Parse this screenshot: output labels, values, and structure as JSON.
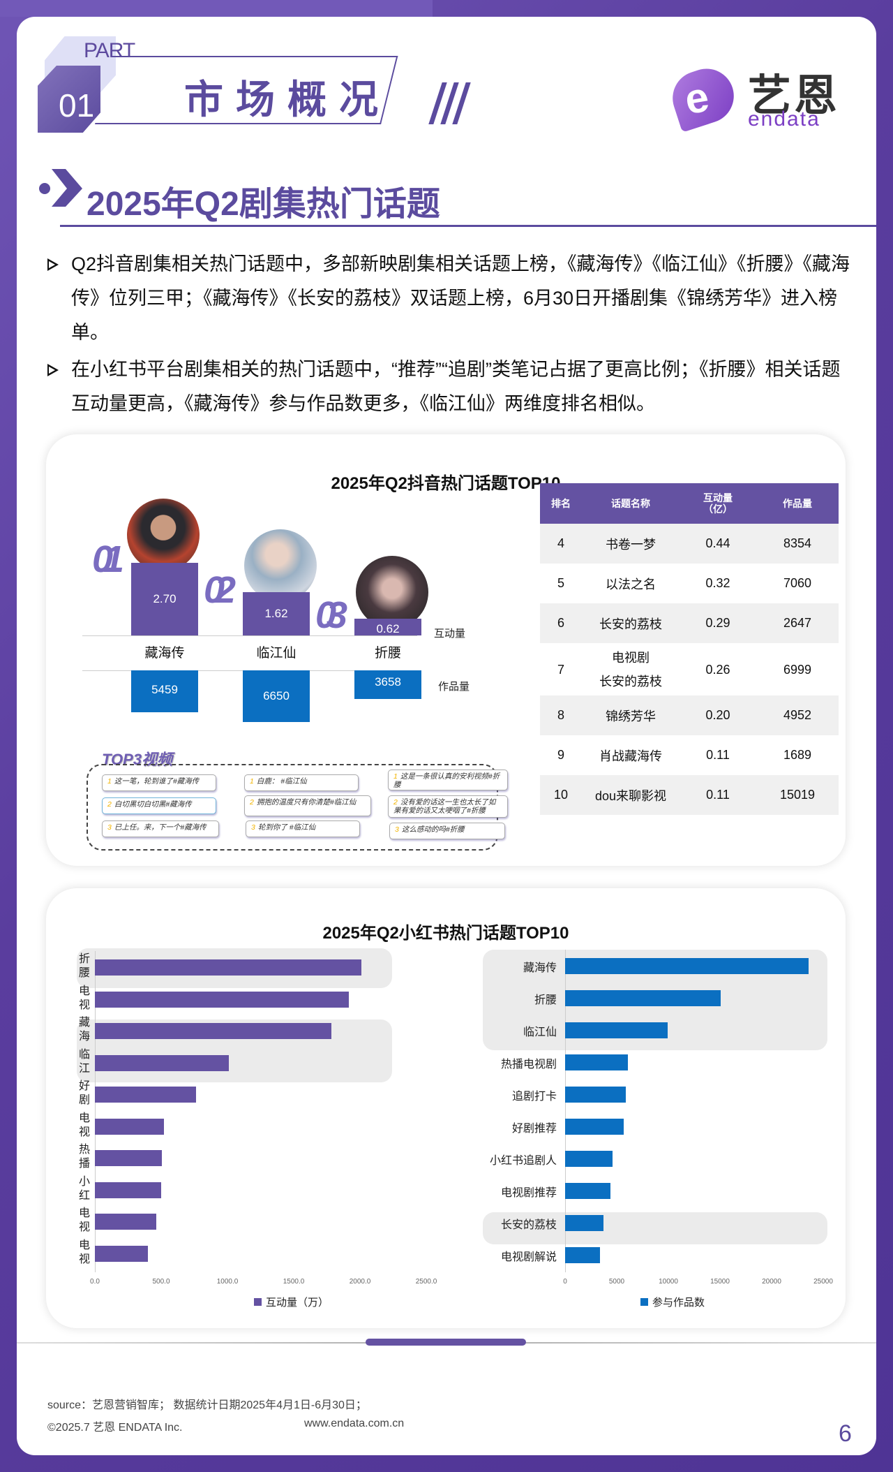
{
  "header": {
    "part_label": "PART",
    "part_number": "01",
    "section_title": "市场概况",
    "logo_cn": "艺恩",
    "logo_en": "endata",
    "logo_letter": "e"
  },
  "heading": {
    "title": "2025年Q2剧集热门话题"
  },
  "bullets": [
    "Q2抖音剧集相关热门话题中，多部新映剧集相关话题上榜，《藏海传》《临江仙》《折腰》《藏海传》位列三甲；《藏海传》《长安的荔枝》双话题上榜，6月30日开播剧集《锦绣芳华》进入榜单。",
    "在小红书平台剧集相关的热门话题中，“推荐”“追剧”类笔记占据了更高比例；《折腰》相关话题互动量更高，《藏海传》参与作品数更多，《临江仙》两维度排名相似。"
  ],
  "douyin": {
    "title": "2025年Q2抖音热门话题TOP10",
    "podium": [
      {
        "rank": "01",
        "name": "藏海传",
        "interaction": "2.70",
        "works": "5459"
      },
      {
        "rank": "02",
        "name": "临江仙",
        "interaction": "1.62",
        "works": "6650"
      },
      {
        "rank": "03",
        "name": "折腰",
        "interaction": "0.62",
        "works": "3658"
      }
    ],
    "label_interaction": "互动量",
    "label_works": "作品量",
    "top3_title": "TOP3视频",
    "top3_videos": [
      [
        {
          "n": "1",
          "text": "这一笔，轮到谁了#藏海传"
        },
        {
          "n": "2",
          "text": "白切黑切白切黑#藏海传"
        },
        {
          "n": "3",
          "text": "已上任。来，下一个#藏海传"
        }
      ],
      [
        {
          "n": "1",
          "text": "白鹿：      #临江仙"
        },
        {
          "n": "2",
          "text": "拥抱的温度只有你清楚#临江仙"
        },
        {
          "n": "3",
          "text": "轮到你了   #临江仙"
        }
      ],
      [
        {
          "n": "1",
          "text": "这是一条很认真的安利视频#折腰"
        },
        {
          "n": "2",
          "text": "没有爱的话这一生也太长了如果有爱的话又太哽咽了#折腰"
        },
        {
          "n": "3",
          "text": "这么感动的吗#折腰"
        }
      ]
    ],
    "table": {
      "headers": [
        "排名",
        "话题名称",
        "互动量\n（亿）",
        "作品量"
      ],
      "rows": [
        {
          "rank": "4",
          "name": "书卷一梦",
          "interaction": "0.44",
          "works": "8354"
        },
        {
          "rank": "5",
          "name": "以法之名",
          "interaction": "0.32",
          "works": "7060"
        },
        {
          "rank": "6",
          "name": "长安的荔枝",
          "interaction": "0.29",
          "works": "2647"
        },
        {
          "rank": "7",
          "name": "电视剧\n长安的荔枝",
          "interaction": "0.26",
          "works": "6999"
        },
        {
          "rank": "8",
          "name": "锦绣芳华",
          "interaction": "0.20",
          "works": "4952"
        },
        {
          "rank": "9",
          "name": "肖战藏海传",
          "interaction": "0.11",
          "works": "1689"
        },
        {
          "rank": "10",
          "name": "dou来聊影视",
          "interaction": "0.11",
          "works": "15019"
        }
      ]
    }
  },
  "xiaohongshu": {
    "title": "2025年Q2小红书热门话题TOP10"
  },
  "chart_data": [
    {
      "type": "bar",
      "title": "2025年Q2抖音热门话题TOP3",
      "categories": [
        "藏海传",
        "临江仙",
        "折腰"
      ],
      "series": [
        {
          "name": "互动量（亿）",
          "values": [
            2.7,
            1.62,
            0.62
          ],
          "color": "#6452a2"
        },
        {
          "name": "作品量",
          "values": [
            5459,
            6650,
            3658
          ],
          "color": "#0b6fc1"
        }
      ]
    },
    {
      "type": "table",
      "title": "2025年Q2抖音热门话题TOP10 (4-10)",
      "columns": [
        "排名",
        "话题名称",
        "互动量（亿）",
        "作品量"
      ],
      "rows": [
        [
          4,
          "书卷一梦",
          0.44,
          8354
        ],
        [
          5,
          "以法之名",
          0.32,
          7060
        ],
        [
          6,
          "长安的荔枝",
          0.29,
          2647
        ],
        [
          7,
          "电视剧长安的荔枝",
          0.26,
          6999
        ],
        [
          8,
          "锦绣芳华",
          0.2,
          4952
        ],
        [
          9,
          "肖战藏海传",
          0.11,
          1689
        ],
        [
          10,
          "dou来聊影视",
          0.11,
          15019
        ]
      ]
    },
    {
      "type": "bar",
      "orientation": "horizontal",
      "title": "2025年Q2小红书热门话题TOP10 - 互动量",
      "categories": [
        "折腰",
        "电视",
        "藏海",
        "临江",
        "好剧",
        "电视",
        "热播",
        "小红",
        "电视",
        "电视"
      ],
      "values": [
        2010,
        1915,
        1785,
        1010,
        765,
        520,
        505,
        500,
        465,
        400
      ],
      "highlighted": [
        "折腰",
        "藏海",
        "临江"
      ],
      "xlabel": "",
      "ylabel": "",
      "xlim": [
        0,
        2500
      ],
      "xticks": [
        "0.0",
        "500.0",
        "1000.0",
        "1500.0",
        "2000.0",
        "2500.0"
      ],
      "legend": "互动量（万）",
      "color": "#6452a2"
    },
    {
      "type": "bar",
      "orientation": "horizontal",
      "title": "2025年Q2小红书热门话题TOP10 - 参与作品数",
      "categories": [
        "藏海传",
        "折腰",
        "临江仙",
        "热播电视剧",
        "追剧打卡",
        "好剧推荐",
        "小红书追剧人",
        "电视剧推荐",
        "长安的荔枝",
        "电视剧解说"
      ],
      "values": [
        23600,
        15100,
        9900,
        6100,
        5900,
        5700,
        4600,
        4400,
        3700,
        3400
      ],
      "highlighted": [
        "藏海传",
        "折腰",
        "临江仙",
        "长安的荔枝"
      ],
      "xlim": [
        0,
        25000
      ],
      "xticks": [
        "0",
        "5000",
        "10000",
        "15000",
        "20000",
        "25000"
      ],
      "legend": "参与作品数",
      "color": "#0b6fc1"
    }
  ],
  "footer": {
    "source": "source：艺恩营销智库；  数据统计日期2025年4月1日-6月30日；",
    "copyright": "©2025.7 艺恩 ENDATA Inc.",
    "url": "www.endata.com.cn",
    "page_number": "6"
  }
}
